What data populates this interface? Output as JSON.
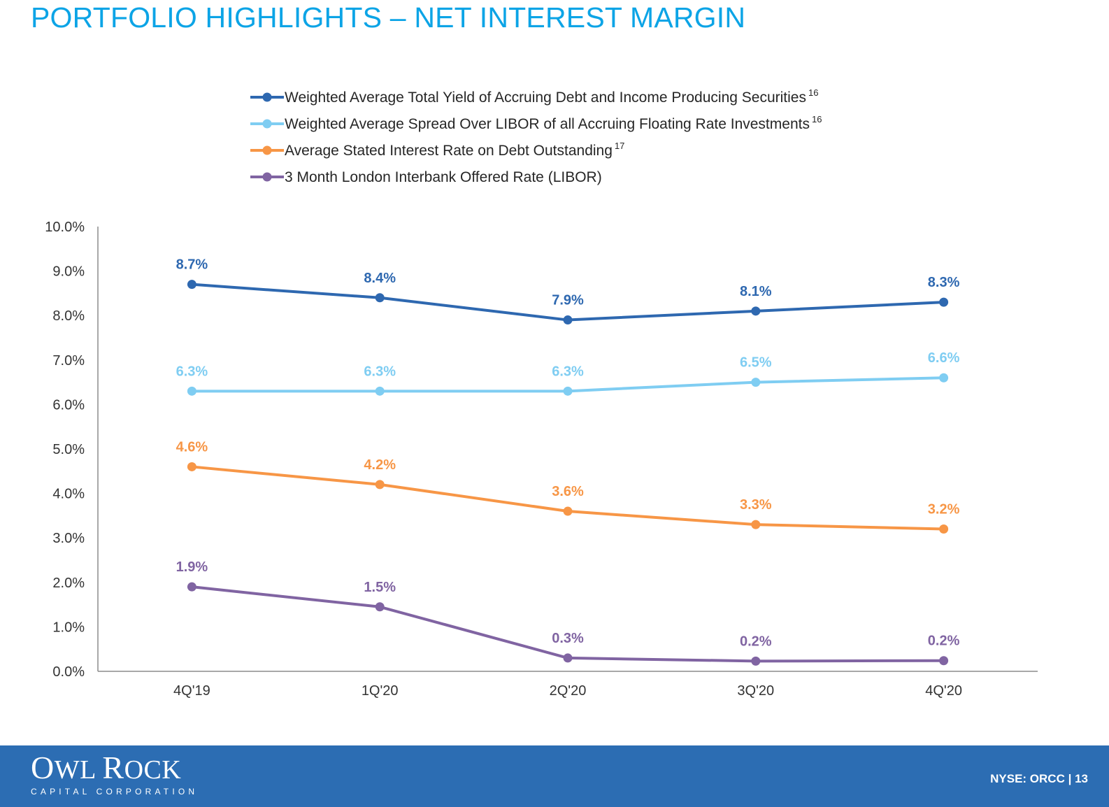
{
  "page": {
    "title": "PORTFOLIO HIGHLIGHTS – NET INTEREST MARGIN"
  },
  "footer": {
    "logo_name": "OWL ROCK",
    "logo_tagline": "CAPITAL CORPORATION",
    "ticker": "NYSE: ORCC",
    "separator": "|",
    "page_number": "13"
  },
  "chart_data": {
    "type": "line",
    "categories": [
      "4Q'19",
      "1Q'20",
      "2Q'20",
      "3Q'20",
      "4Q'20"
    ],
    "ylim": [
      0,
      10
    ],
    "yticks": [
      "0.0%",
      "1.0%",
      "2.0%",
      "3.0%",
      "4.0%",
      "5.0%",
      "6.0%",
      "7.0%",
      "8.0%",
      "9.0%",
      "10.0%"
    ],
    "grid": false,
    "legend_position": "top",
    "series": [
      {
        "name": "Weighted Average Total Yield of Accruing Debt and Income Producing Securities",
        "footnote": "16",
        "color": "#2e68b0",
        "values": [
          8.7,
          8.4,
          7.9,
          8.1,
          8.3
        ],
        "labels": [
          "8.7%",
          "8.4%",
          "7.9%",
          "8.1%",
          "8.3%"
        ]
      },
      {
        "name": "Weighted Average Spread Over LIBOR of all Accruing Floating Rate Investments",
        "footnote": "16",
        "color": "#7fcdf2",
        "values": [
          6.3,
          6.3,
          6.3,
          6.5,
          6.6
        ],
        "labels": [
          "6.3%",
          "6.3%",
          "6.3%",
          "6.5%",
          "6.6%"
        ]
      },
      {
        "name": "Average Stated Interest Rate on Debt Outstanding",
        "footnote": "17",
        "color": "#f79646",
        "values": [
          4.6,
          4.2,
          3.6,
          3.3,
          3.2
        ],
        "labels": [
          "4.6%",
          "4.2%",
          "3.6%",
          "3.3%",
          "3.2%"
        ]
      },
      {
        "name": "3 Month London Interbank Offered Rate (LIBOR)",
        "footnote": "",
        "color": "#8064a2",
        "values": [
          1.9,
          1.45,
          0.3,
          0.23,
          0.24
        ],
        "labels": [
          "1.9%",
          "1.5%",
          "0.3%",
          "0.2%",
          "0.2%"
        ]
      }
    ]
  }
}
